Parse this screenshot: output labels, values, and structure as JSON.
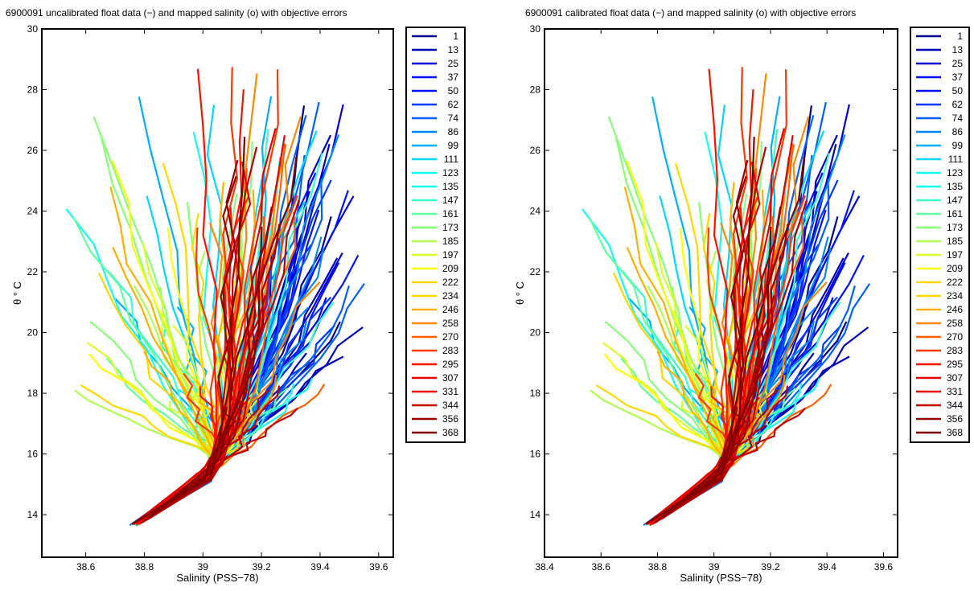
{
  "chart_data": [
    {
      "type": "line",
      "title": "6900091 uncalibrated float data (−) and mapped salinity (o) with objective errors",
      "xlabel": "Salinity (PSS−78)",
      "ylabel": "θ ° C",
      "xlim": [
        38.45,
        39.65
      ],
      "ylim": [
        12.6,
        30
      ],
      "xticks": [
        "38.6",
        "38.8",
        "39",
        "39.2",
        "39.4",
        "39.6"
      ],
      "xtick_values": [
        38.6,
        38.8,
        39.0,
        39.2,
        39.4,
        39.6
      ],
      "yticks": [
        "14",
        "16",
        "18",
        "20",
        "22",
        "24",
        "26",
        "28",
        "30"
      ],
      "ytick_values": [
        14,
        16,
        18,
        20,
        22,
        24,
        26,
        28,
        30
      ],
      "grid": false,
      "legend_position": "outside-right",
      "legend": [
        "1",
        "13",
        "25",
        "37",
        "50",
        "62",
        "74",
        "86",
        "99",
        "111",
        "123",
        "135",
        "147",
        "161",
        "173",
        "185",
        "197",
        "209",
        "222",
        "234",
        "246",
        "258",
        "270",
        "283",
        "295",
        "307",
        "331",
        "344",
        "356",
        "368"
      ]
    },
    {
      "type": "line",
      "title": "6900091 calibrated float data (−) and mapped salinity (o) with objective errors",
      "xlabel": "Salinity (PSS−78)",
      "ylabel": "θ ° C",
      "xlim": [
        38.4,
        39.65
      ],
      "ylim": [
        12.6,
        30
      ],
      "xticks": [
        "38.4",
        "38.6",
        "38.8",
        "39",
        "39.2",
        "39.4",
        "39.6"
      ],
      "xtick_values": [
        38.4,
        38.6,
        38.8,
        39.0,
        39.2,
        39.4,
        39.6
      ],
      "yticks": [
        "14",
        "16",
        "18",
        "20",
        "22",
        "24",
        "26",
        "28",
        "30"
      ],
      "ytick_values": [
        14,
        16,
        18,
        20,
        22,
        24,
        26,
        28,
        30
      ],
      "grid": false,
      "legend_position": "outside-right",
      "legend": [
        "1",
        "13",
        "25",
        "37",
        "50",
        "62",
        "74",
        "86",
        "99",
        "111",
        "123",
        "135",
        "147",
        "161",
        "173",
        "185",
        "197",
        "209",
        "222",
        "234",
        "246",
        "258",
        "270",
        "283",
        "295",
        "307",
        "331",
        "344",
        "356",
        "368"
      ]
    }
  ],
  "colors": {
    "jet": [
      "#00008f",
      "#0000b5",
      "#0000df",
      "#0010ff",
      "#0038ff",
      "#0060ff",
      "#0088ff",
      "#00b0ff",
      "#00d8ff",
      "#10ffef",
      "#38ffc7",
      "#60ff9f",
      "#88ff77",
      "#b0ff4f",
      "#d8ff27",
      "#ffff00",
      "#ffd800",
      "#ffb000",
      "#ff8800",
      "#ff6000",
      "#ff3800",
      "#ff1000",
      "#e80000",
      "#c00000",
      "#980000",
      "#800000"
    ]
  }
}
